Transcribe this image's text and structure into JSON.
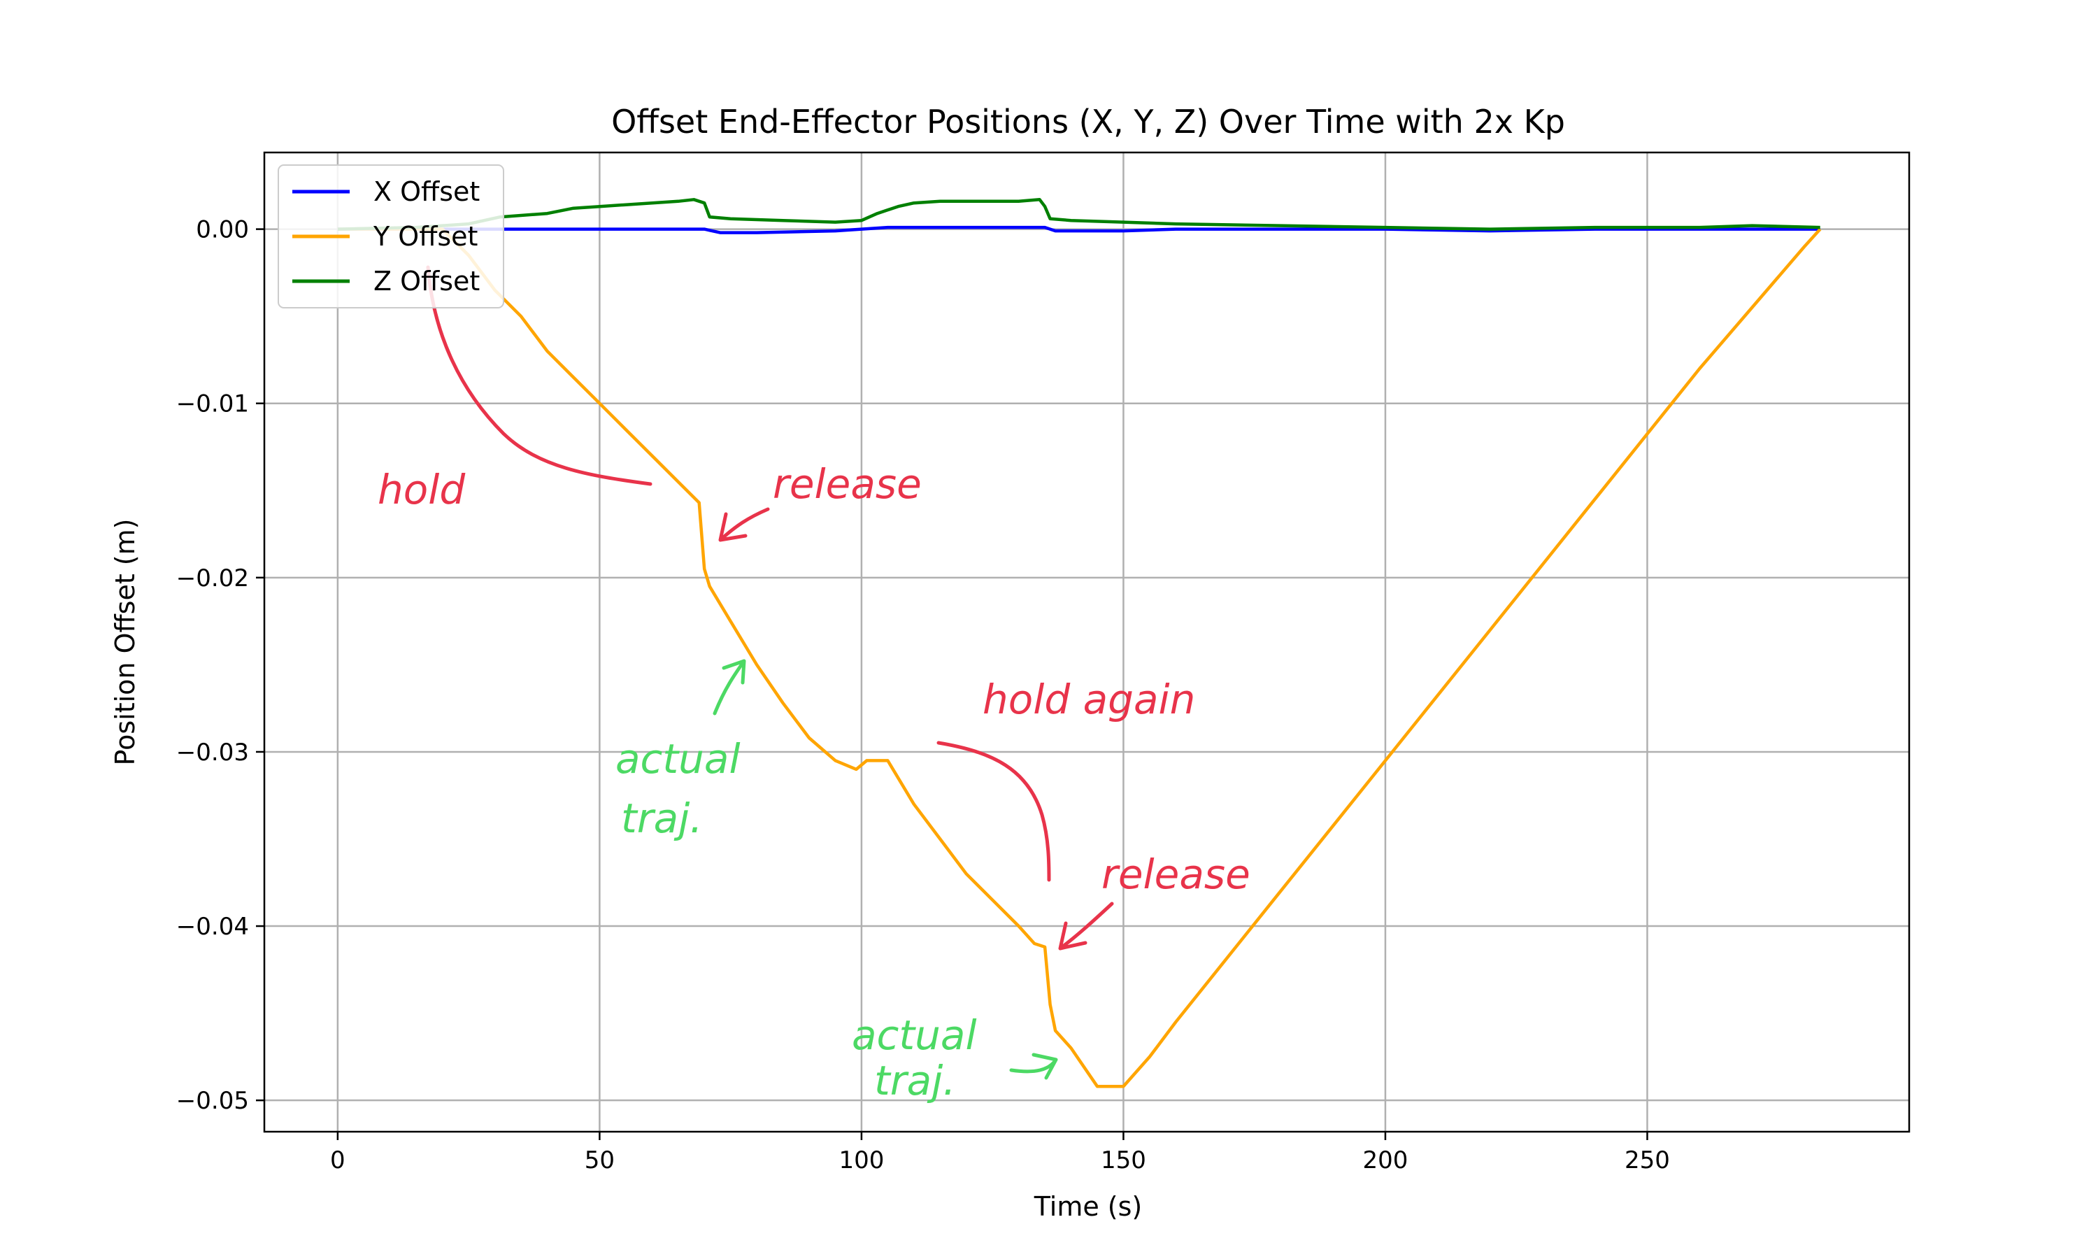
{
  "chart_data": {
    "type": "line",
    "title": "Offset End-Effector Positions (X, Y, Z) Over Time with 2x Kp",
    "xlabel": "Time (s)",
    "ylabel": "Position Offset (m)",
    "xlim": [
      -14,
      300
    ],
    "ylim": [
      -0.0518,
      0.0044
    ],
    "xticks": [
      0,
      50,
      100,
      150,
      200,
      250
    ],
    "xtick_labels": [
      "0",
      "50",
      "100",
      "150",
      "200",
      "250"
    ],
    "yticks": [
      0.0,
      -0.01,
      -0.02,
      -0.03,
      -0.04,
      -0.05
    ],
    "ytick_labels": [
      "0.00",
      "−0.01",
      "−0.02",
      "−0.03",
      "−0.04",
      "−0.05"
    ],
    "grid": true,
    "legend_position": "top-left",
    "series": [
      {
        "name": "X Offset",
        "color": "#0000ff",
        "x": [
          0,
          20,
          40,
          60,
          70,
          73,
          80,
          95,
          100,
          105,
          120,
          135,
          137,
          150,
          160,
          180,
          200,
          220,
          240,
          260,
          283
        ],
        "y": [
          0.0,
          0.0,
          0.0,
          0.0,
          0.0,
          -0.0002,
          -0.0002,
          -0.0001,
          0.0,
          0.0001,
          0.0001,
          0.0001,
          -0.0001,
          -0.0001,
          0.0,
          0.0,
          0.0,
          -0.0001,
          0.0,
          0.0,
          0.0
        ]
      },
      {
        "name": "Y Offset",
        "color": "#ffa500",
        "x": [
          0,
          10,
          20,
          25,
          30,
          35,
          40,
          45,
          50,
          55,
          60,
          65,
          69,
          70,
          71,
          75,
          80,
          85,
          90,
          95,
          99,
          101,
          105,
          110,
          115,
          120,
          125,
          130,
          133,
          135,
          136,
          137,
          140,
          145,
          150,
          155,
          160,
          180,
          200,
          220,
          240,
          260,
          280,
          283
        ],
        "y": [
          0.0,
          0.0,
          0.0,
          -0.0015,
          -0.0035,
          -0.005,
          -0.007,
          -0.0085,
          -0.01,
          -0.0115,
          -0.013,
          -0.0145,
          -0.0157,
          -0.0195,
          -0.0205,
          -0.0225,
          -0.025,
          -0.0272,
          -0.0292,
          -0.0305,
          -0.031,
          -0.0305,
          -0.0305,
          -0.033,
          -0.035,
          -0.037,
          -0.0385,
          -0.04,
          -0.041,
          -0.0412,
          -0.0445,
          -0.046,
          -0.047,
          -0.0492,
          -0.0492,
          -0.0475,
          -0.0455,
          -0.038,
          -0.0305,
          -0.023,
          -0.0155,
          -0.008,
          -0.001,
          0.0
        ]
      },
      {
        "name": "Z Offset",
        "color": "#008000",
        "x": [
          0,
          15,
          25,
          31,
          40,
          45,
          50,
          55,
          60,
          65,
          68,
          70,
          71,
          75,
          85,
          95,
          100,
          103,
          107,
          110,
          115,
          120,
          125,
          130,
          134,
          135,
          136,
          140,
          150,
          160,
          180,
          200,
          220,
          240,
          260,
          270,
          283
        ],
        "y": [
          0.0,
          0.0001,
          0.0003,
          0.0007,
          0.0009,
          0.0012,
          0.0013,
          0.0014,
          0.0015,
          0.0016,
          0.0017,
          0.0015,
          0.0007,
          0.0006,
          0.0005,
          0.0004,
          0.0005,
          0.0009,
          0.0013,
          0.0015,
          0.0016,
          0.0016,
          0.0016,
          0.0016,
          0.0017,
          0.0013,
          0.0006,
          0.0005,
          0.0004,
          0.0003,
          0.0002,
          0.0001,
          0.0,
          0.0001,
          0.0001,
          0.0002,
          0.0001
        ]
      }
    ],
    "annotations": [
      {
        "text": "hold",
        "color": "#e8334a"
      },
      {
        "text": "release",
        "color": "#e8334a"
      },
      {
        "text": "hold again",
        "color": "#e8334a"
      },
      {
        "text": "release",
        "color": "#e8334a"
      },
      {
        "text": "actual",
        "color": "#4cd964"
      },
      {
        "text": "traj.",
        "color": "#4cd964"
      },
      {
        "text": "actual",
        "color": "#4cd964"
      },
      {
        "text": "traj.",
        "color": "#4cd964"
      }
    ]
  }
}
